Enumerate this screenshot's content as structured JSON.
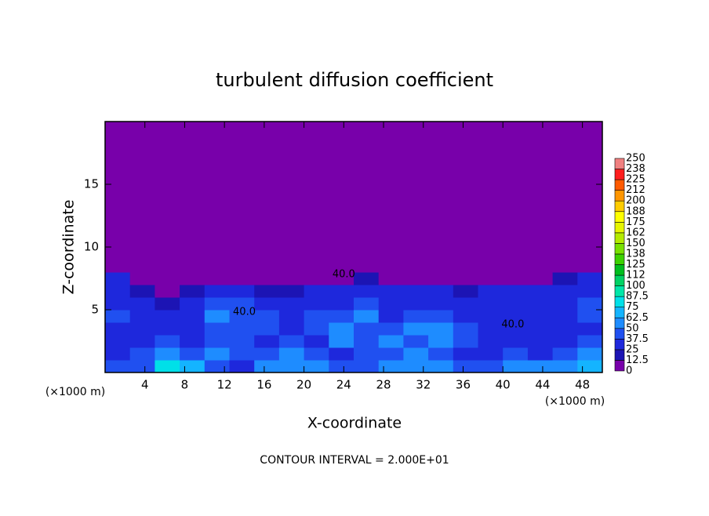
{
  "chart_data": {
    "type": "heatmap",
    "title": "turbulent diffusion coefficient",
    "x_label": "X-coordinate",
    "y_label": "Z-coordinate",
    "x_unit": "(×1000 m)",
    "y_unit": "(×1000 m)",
    "footer": "CONTOUR INTERVAL = 2.000E+01",
    "xlim": [
      0,
      50
    ],
    "ylim": [
      0,
      20
    ],
    "xticks": [
      4,
      8,
      12,
      16,
      20,
      24,
      28,
      32,
      36,
      40,
      44,
      48
    ],
    "yticks": [
      5,
      10,
      15
    ],
    "x_bins": [
      0,
      2.5,
      5,
      7.5,
      10,
      12.5,
      15,
      17.5,
      20,
      22.5,
      25,
      27.5,
      30,
      32.5,
      35,
      37.5,
      40,
      42.5,
      45,
      47.5,
      50
    ],
    "y_bins": [
      0,
      1,
      2,
      3,
      4,
      5,
      6,
      7,
      8,
      20
    ],
    "values": [
      [
        40,
        45,
        80,
        70,
        45,
        30,
        50,
        55,
        50,
        40,
        45,
        55,
        60,
        50,
        45,
        40,
        50,
        55,
        60,
        65
      ],
      [
        35,
        40,
        60,
        40,
        55,
        45,
        40,
        50,
        45,
        35,
        40,
        45,
        55,
        45,
        35,
        30,
        40,
        35,
        45,
        50
      ],
      [
        30,
        35,
        45,
        35,
        45,
        40,
        30,
        40,
        35,
        50,
        40,
        50,
        45,
        55,
        40,
        30,
        35,
        30,
        35,
        40
      ],
      [
        35,
        30,
        30,
        30,
        40,
        45,
        40,
        35,
        45,
        55,
        45,
        40,
        50,
        50,
        45,
        35,
        30,
        30,
        30,
        35
      ],
      [
        40,
        30,
        25,
        35,
        50,
        40,
        45,
        30,
        40,
        40,
        50,
        35,
        45,
        40,
        35,
        30,
        30,
        30,
        30,
        40
      ],
      [
        35,
        30,
        20,
        30,
        45,
        40,
        30,
        25,
        30,
        35,
        40,
        30,
        35,
        30,
        25,
        30,
        30,
        30,
        35,
        40
      ],
      [
        30,
        20,
        10,
        15,
        30,
        25,
        15,
        20,
        25,
        25,
        30,
        25,
        30,
        30,
        20,
        25,
        25,
        30,
        35,
        30
      ],
      [
        25,
        5,
        0,
        0,
        5,
        0,
        0,
        0,
        5,
        10,
        15,
        0,
        5,
        5,
        0,
        0,
        0,
        10,
        20,
        25
      ],
      [
        0,
        0,
        0,
        0,
        0,
        0,
        0,
        0,
        0,
        0,
        0,
        0,
        0,
        0,
        0,
        0,
        0,
        0,
        0,
        0
      ]
    ],
    "annotations": [
      {
        "text": "40.0",
        "x": 24,
        "y": 7.8
      },
      {
        "text": "40.0",
        "x": 14,
        "y": 4.8
      },
      {
        "text": "40.0",
        "x": 41,
        "y": 3.8
      }
    ],
    "colorbar": {
      "ticks": [
        0,
        12.5,
        25,
        37.5,
        50,
        62.5,
        75,
        87.5,
        100,
        {
          "value": 112.5,
          "label": "112"
        },
        125,
        {
          "value": 137.5,
          "label": "138"
        },
        150,
        {
          "value": 162.5,
          "label": "162"
        },
        175,
        {
          "value": 187.5,
          "label": "188"
        },
        200,
        {
          "value": 212.5,
          "label": "212"
        },
        225,
        {
          "value": 237.5,
          "label": "238"
        },
        250
      ],
      "colors": [
        "#7800aa",
        "#1c14b4",
        "#1e28dc",
        "#2050f0",
        "#1e8cff",
        "#14b4ff",
        "#00e0e8",
        "#00e6a8",
        "#00d264",
        "#00be1e",
        "#3cd200",
        "#78e100",
        "#b4eb00",
        "#e6f500",
        "#ffff00",
        "#ffcc00",
        "#ff9600",
        "#ff5a00",
        "#ff1e1e",
        "#f08080"
      ]
    }
  }
}
